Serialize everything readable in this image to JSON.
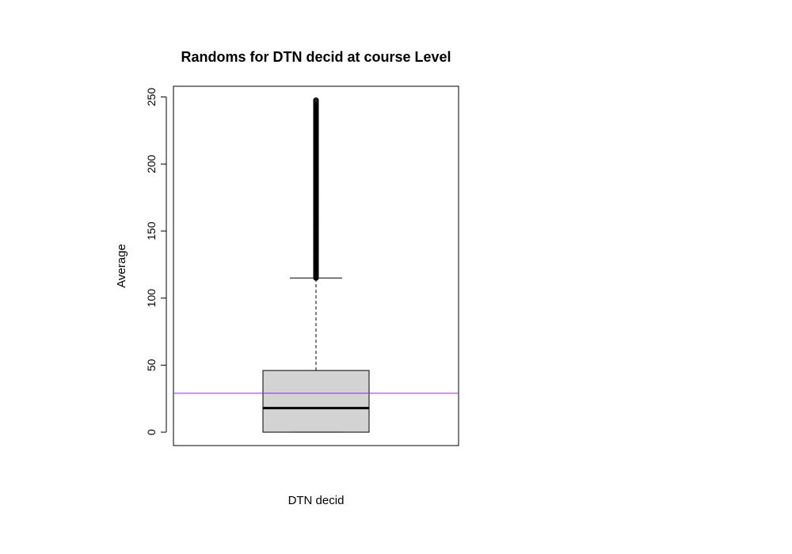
{
  "chart_data": {
    "type": "box",
    "title": "Randoms for DTN decid at course Level",
    "xlabel": "DTN decid",
    "ylabel": "Average",
    "ylim": [
      -10,
      258
    ],
    "yticks": [
      0,
      50,
      100,
      150,
      200,
      250
    ],
    "box": {
      "min": 0,
      "q1": 0,
      "median": 18,
      "q3": 46,
      "whisker_high": 115,
      "outliers_range": [
        115,
        248
      ]
    },
    "reference_line": {
      "value": 29,
      "color": "#a020f0"
    },
    "grid": false,
    "colors": {
      "box_fill": "#d3d3d3",
      "outline": "#000000",
      "reference_line": "#a020f0"
    }
  }
}
